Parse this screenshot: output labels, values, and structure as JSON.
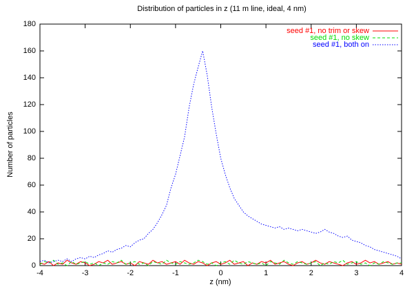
{
  "chart_data": {
    "type": "line",
    "title": "Distribution of particles in z (11 m line, ideal, 4 nm)",
    "x_label": "z (nm)",
    "y_label": "Number of particles",
    "x": [
      -4,
      -3.9,
      -3.8,
      -3.7,
      -3.6,
      -3.5,
      -3.4,
      -3.3,
      -3.2,
      -3.1,
      -3,
      -2.9,
      -2.8,
      -2.7,
      -2.6,
      -2.5,
      -2.4,
      -2.3,
      -2.2,
      -2.1,
      -2,
      -1.9,
      -1.8,
      -1.7,
      -1.6,
      -1.5,
      -1.4,
      -1.3,
      -1.2,
      -1.1,
      -1,
      -0.9,
      -0.8,
      -0.7,
      -0.6,
      -0.5,
      -0.4,
      -0.3,
      -0.2,
      -0.1,
      0,
      0.1,
      0.2,
      0.3,
      0.4,
      0.5,
      0.6,
      0.7,
      0.8,
      0.9,
      1,
      1.1,
      1.2,
      1.3,
      1.4,
      1.5,
      1.6,
      1.7,
      1.8,
      1.9,
      2,
      2.1,
      2.2,
      2.3,
      2.4,
      2.5,
      2.6,
      2.7,
      2.8,
      2.9,
      3,
      3.1,
      3.2,
      3.3,
      3.4,
      3.5,
      3.6,
      3.7,
      3.8,
      3.9,
      4
    ],
    "series": [
      {
        "name": "seed #1, no trim or skew",
        "color": "#ff0000",
        "dash": "none",
        "values": [
          2,
          1,
          3,
          0,
          2,
          1,
          4,
          2,
          1,
          3,
          2,
          0,
          1,
          3,
          2,
          4,
          1,
          2,
          3,
          1,
          2,
          0,
          3,
          2,
          1,
          4,
          2,
          3,
          1,
          2,
          3,
          1,
          4,
          2,
          1,
          3,
          2,
          0,
          2,
          3,
          1,
          2,
          4,
          1,
          2,
          3,
          0,
          2,
          1,
          3,
          2,
          4,
          1,
          2,
          3,
          1,
          0,
          2,
          3,
          1,
          2,
          4,
          2,
          1,
          3,
          2,
          1,
          0,
          2,
          3,
          1,
          2,
          4,
          2,
          3,
          1,
          2,
          3,
          1,
          2,
          1
        ]
      },
      {
        "name": "seed #1, no skew",
        "color": "#00dd00",
        "dash": "4,3",
        "values": [
          1,
          3,
          2,
          4,
          1,
          2,
          0,
          3,
          1,
          2,
          3,
          1,
          2,
          0,
          2,
          1,
          3,
          2,
          4,
          1,
          2,
          3,
          1,
          2,
          0,
          3,
          2,
          1,
          4,
          2,
          1,
          3,
          2,
          1,
          2,
          4,
          3,
          1,
          2,
          0,
          2,
          3,
          1,
          4,
          2,
          1,
          3,
          2,
          1,
          2,
          0,
          3,
          2,
          1,
          4,
          2,
          1,
          3,
          2,
          1,
          2,
          3,
          0,
          2,
          1,
          3,
          2,
          4,
          1,
          2,
          3,
          1,
          2,
          0,
          2,
          1,
          3,
          2,
          1,
          2,
          2
        ]
      },
      {
        "name": "seed #1, both on",
        "color": "#0000ff",
        "dash": "1.5,2",
        "values": [
          3,
          4,
          2,
          3,
          4,
          3,
          5,
          3,
          5,
          6,
          5,
          7,
          6,
          8,
          9,
          11,
          10,
          12,
          13,
          15,
          14,
          17,
          19,
          20,
          24,
          27,
          32,
          38,
          45,
          58,
          68,
          82,
          96,
          118,
          135,
          148,
          160,
          142,
          118,
          98,
          80,
          68,
          58,
          50,
          45,
          40,
          37,
          35,
          33,
          31,
          30,
          29,
          28,
          29,
          27,
          28,
          27,
          26,
          27,
          26,
          25,
          24,
          25,
          27,
          25,
          24,
          22,
          21,
          22,
          19,
          18,
          17,
          15,
          14,
          12,
          11,
          10,
          9,
          8,
          7,
          5
        ]
      }
    ],
    "xlim": [
      -4,
      4
    ],
    "xticks": [
      -4,
      -3,
      -2,
      -1,
      0,
      1,
      2,
      3,
      4
    ],
    "ylim": [
      0,
      180
    ],
    "yticks": [
      0,
      20,
      40,
      60,
      80,
      100,
      120,
      140,
      160,
      180
    ],
    "legend": "top-right"
  }
}
